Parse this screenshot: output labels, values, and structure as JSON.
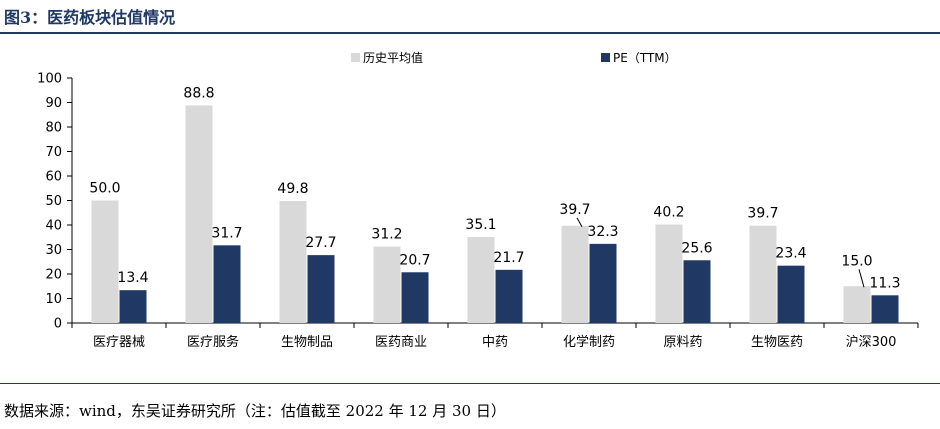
{
  "figure": {
    "title": "图3：医药板块估值情况",
    "source": "数据来源：wind，东吴证券研究所（注：估值截至 2022 年 12 月 30 日）"
  },
  "colors": {
    "series1": "#d9d9d9",
    "series2": "#1f3864",
    "rule": "#1f3864"
  },
  "chart_data": {
    "type": "bar",
    "categories": [
      "医疗器械",
      "医疗服务",
      "生物制品",
      "医药商业",
      "中药",
      "化学制药",
      "原料药",
      "生物医药",
      "沪深300"
    ],
    "series": [
      {
        "name": "历史平均值",
        "values": [
          50.0,
          88.8,
          49.8,
          31.2,
          35.1,
          39.7,
          40.2,
          39.7,
          15.0
        ]
      },
      {
        "name": "PE（TTM）",
        "values": [
          13.4,
          31.7,
          27.7,
          20.7,
          21.7,
          32.3,
          25.6,
          23.4,
          11.3
        ]
      }
    ],
    "ylim": [
      0,
      100
    ],
    "yticks": [
      0,
      10,
      20,
      30,
      40,
      50,
      60,
      70,
      80,
      90,
      100
    ],
    "data_label_format": "0.0",
    "legend_position": "top",
    "grid": false
  }
}
